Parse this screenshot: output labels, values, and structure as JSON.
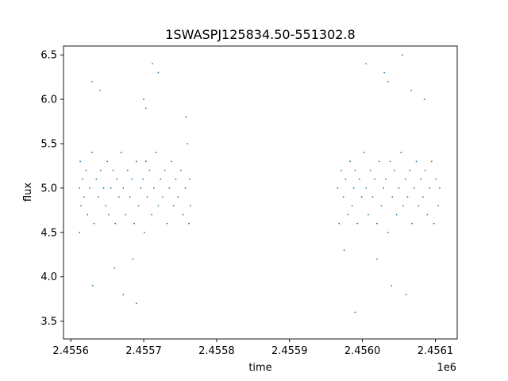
{
  "chart_data": {
    "type": "scatter",
    "title": "1SWASPJ125834.50-551302.8",
    "xlabel": "time",
    "ylabel": "flux",
    "x_offset_label": "1e6",
    "xlim": [
      2455590,
      2456130
    ],
    "ylim": [
      3.3,
      6.6
    ],
    "x_ticks": [
      2455600,
      2455700,
      2455800,
      2455900,
      2456000,
      2456100
    ],
    "x_tick_labels": [
      "2.4556",
      "2.4557",
      "2.4558",
      "2.4559",
      "2.4560",
      "2.4561"
    ],
    "y_ticks": [
      3.5,
      4.0,
      4.5,
      5.0,
      5.5,
      6.0,
      6.5
    ],
    "y_tick_labels": [
      "3.5",
      "4.0",
      "4.5",
      "5.0",
      "5.5",
      "6.0",
      "6.5"
    ],
    "marker_color": "#1f77b4",
    "grid": false,
    "series": [
      {
        "x": [
          2455612,
          2455612,
          2455613,
          2455614,
          2455616,
          2455618,
          2455621,
          2455623,
          2455626,
          2455629,
          2455632,
          2455635,
          2455638,
          2455641,
          2455645,
          2455648,
          2455650,
          2455652,
          2455655,
          2455658,
          2455661,
          2455663,
          2455666,
          2455669,
          2455672,
          2455675,
          2455678,
          2455681,
          2455684,
          2455687,
          2455690,
          2455693,
          2455696,
          2455699,
          2455701,
          2455703,
          2455705,
          2455708,
          2455711,
          2455714,
          2455717,
          2455720,
          2455723,
          2455726,
          2455729,
          2455732,
          2455735,
          2455738,
          2455741,
          2455744,
          2455747,
          2455751,
          2455754,
          2455757,
          2455760,
          2455762,
          2455763,
          2455764,
          2455629,
          2455672,
          2455700,
          2455685,
          2455703,
          2455630,
          2455720,
          2455660,
          2455758,
          2455640,
          2455690,
          2455712,
          2455966,
          2455968,
          2455971,
          2455974,
          2455977,
          2455980,
          2455983,
          2455986,
          2455988,
          2455990,
          2455993,
          2455996,
          2455999,
          2456002,
          2456005,
          2456008,
          2456011,
          2456014,
          2456017,
          2456020,
          2456023,
          2456026,
          2456029,
          2456032,
          2456035,
          2456038,
          2456041,
          2456044,
          2456047,
          2456050,
          2456053,
          2456056,
          2456059,
          2456062,
          2456065,
          2456068,
          2456071,
          2456074,
          2456077,
          2456080,
          2456083,
          2456086,
          2456089,
          2456092,
          2456095,
          2456098,
          2456101,
          2456104,
          2456106,
          2456030,
          2456055,
          2456067,
          2456040,
          2456020,
          2456085,
          2455990,
          2456005,
          2456060,
          2456035,
          2455975
        ],
        "y": [
          5.0,
          4.5,
          5.3,
          4.8,
          5.1,
          4.9,
          5.2,
          4.7,
          5.0,
          5.4,
          4.6,
          5.1,
          4.9,
          5.2,
          5.0,
          4.8,
          5.3,
          4.7,
          5.0,
          5.2,
          4.6,
          5.1,
          4.9,
          5.4,
          5.0,
          4.7,
          5.2,
          4.9,
          5.1,
          4.6,
          5.3,
          4.8,
          5.0,
          5.1,
          4.5,
          5.3,
          4.9,
          5.2,
          4.7,
          5.0,
          5.4,
          4.8,
          5.1,
          4.9,
          5.2,
          4.6,
          5.0,
          5.3,
          4.8,
          5.1,
          4.9,
          5.2,
          4.7,
          5.0,
          5.5,
          4.6,
          5.1,
          4.8,
          6.2,
          3.8,
          6.0,
          4.2,
          5.9,
          3.9,
          6.3,
          4.1,
          5.8,
          6.1,
          3.7,
          6.4,
          5.0,
          4.6,
          5.2,
          4.9,
          5.1,
          4.7,
          5.3,
          4.8,
          5.0,
          5.2,
          4.6,
          5.1,
          4.9,
          5.4,
          5.0,
          4.7,
          5.2,
          4.9,
          5.1,
          4.6,
          5.3,
          4.8,
          5.0,
          5.1,
          4.5,
          5.3,
          4.9,
          5.2,
          4.7,
          5.0,
          5.4,
          4.8,
          5.1,
          4.9,
          5.2,
          4.6,
          5.0,
          5.3,
          4.8,
          5.1,
          4.9,
          5.2,
          4.7,
          5.0,
          5.3,
          4.6,
          5.1,
          4.8,
          5.0,
          6.3,
          6.5,
          6.1,
          3.9,
          4.2,
          6.0,
          3.6,
          6.4,
          3.8,
          6.2,
          4.3
        ]
      }
    ]
  }
}
